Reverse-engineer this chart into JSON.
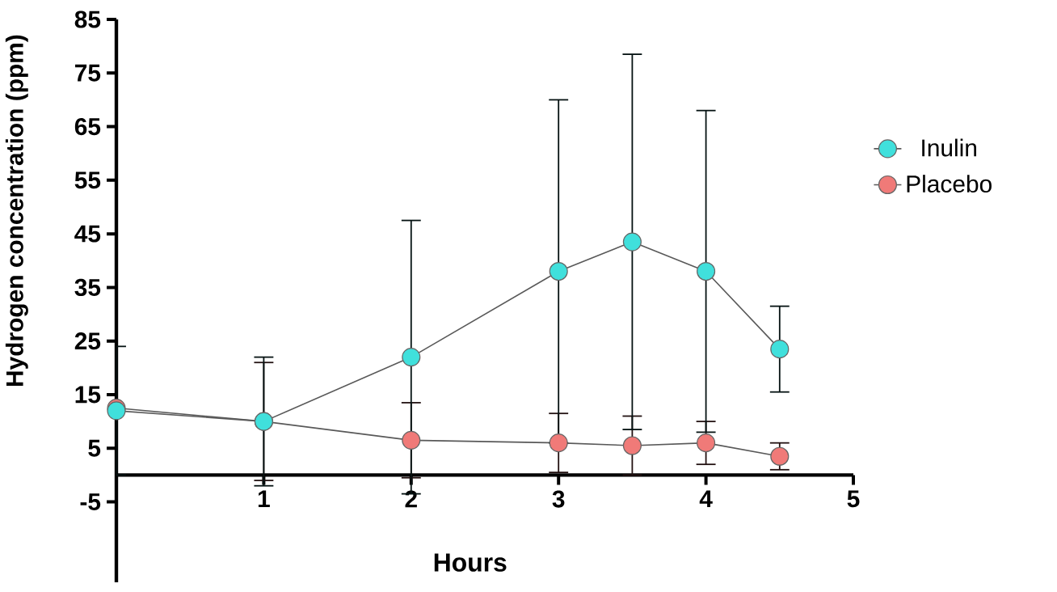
{
  "chart_data": {
    "type": "line",
    "xlabel": "Hours",
    "ylabel": "Hydrogen concentration (ppm)",
    "x": [
      0,
      1,
      2,
      3,
      3.5,
      4,
      4.5
    ],
    "series": [
      {
        "name": "Inulin",
        "color": "#40e0dc",
        "values": [
          12,
          10,
          22,
          38,
          43.5,
          38,
          23.5
        ],
        "errors": [
          12,
          12,
          25.5,
          32,
          35,
          30,
          8
        ]
      },
      {
        "name": "Placebo",
        "color": "#f07a78",
        "values": [
          12.5,
          10,
          6.5,
          6,
          5.5,
          6,
          3.5
        ],
        "errors": [
          null,
          11,
          7,
          5.5,
          5.5,
          4,
          2.5
        ]
      }
    ],
    "xlim": [
      0,
      5
    ],
    "xticks": [
      1,
      2,
      3,
      4,
      5
    ],
    "ylim": [
      -20,
      85
    ],
    "yticks": [
      -5,
      5,
      15,
      25,
      35,
      45,
      55,
      65,
      75,
      85
    ],
    "marker": "circle",
    "legend": "right",
    "grid": false
  }
}
